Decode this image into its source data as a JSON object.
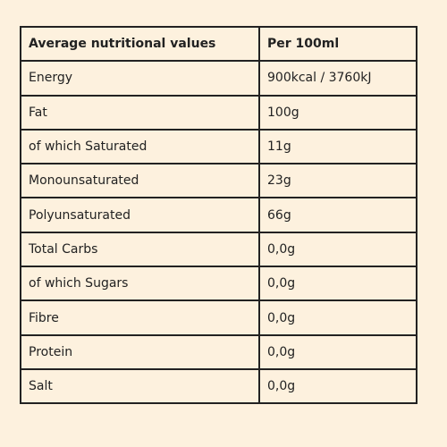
{
  "table": {
    "header": [
      "Average nutritional values",
      "Per 100ml"
    ],
    "rows": [
      [
        "Energy",
        "900kcal / 3760kJ"
      ],
      [
        "Fat",
        "100g"
      ],
      [
        "of which Saturated",
        "11g"
      ],
      [
        "Monounsaturated",
        "23g"
      ],
      [
        "Polyunsaturated",
        "66g"
      ],
      [
        "Total Carbs",
        "0,0g"
      ],
      [
        "of which Sugars",
        "0,0g"
      ],
      [
        "Fibre",
        "0,0g"
      ],
      [
        "Protein",
        "0,0g"
      ],
      [
        "Salt",
        "0,0g"
      ]
    ]
  }
}
